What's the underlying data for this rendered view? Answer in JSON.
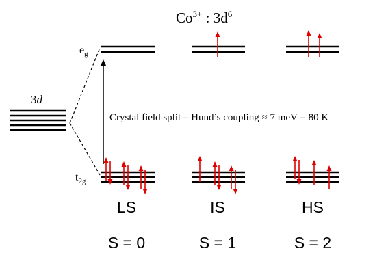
{
  "title": {
    "base": "Co",
    "sup": "3+",
    "config": " : 3d",
    "config_sup": "6"
  },
  "free_ion_label": {
    "number": "3",
    "orbital": "d"
  },
  "eg_label": {
    "main": "e",
    "sub": "g"
  },
  "t2g_label": {
    "main": "t",
    "sub": "2g"
  },
  "annotation": "Crystal field split – Hund’s coupling  ≈ 7 meV = 80 K",
  "states": [
    {
      "name": "LS",
      "spin": "S = 0"
    },
    {
      "name": "IS",
      "spin": "S = 1"
    },
    {
      "name": "HS",
      "spin": "S = 2"
    }
  ],
  "colors": {
    "levels": "#000000",
    "spins": "#e00000"
  },
  "electron_configs": [
    {
      "state": "LS",
      "t2g": [
        "up-down",
        "up-down",
        "up-down"
      ],
      "eg": []
    },
    {
      "state": "IS",
      "t2g": [
        "up",
        "up-down",
        "up-down"
      ],
      "eg": [
        "up"
      ]
    },
    {
      "state": "HS",
      "t2g": [
        "up-down",
        "up",
        "up"
      ],
      "eg": [
        "up",
        "up"
      ]
    }
  ]
}
